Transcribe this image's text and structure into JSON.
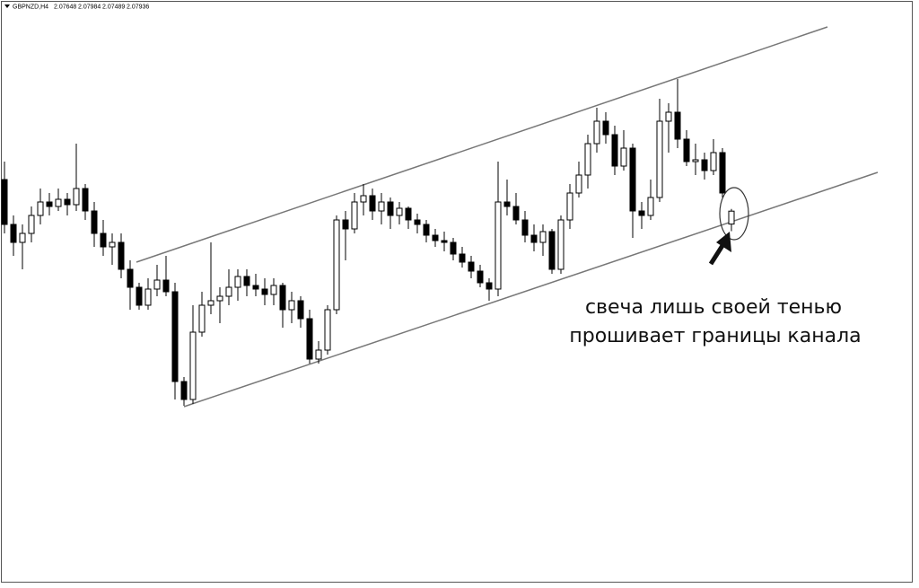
{
  "chart_data": {
    "type": "candlestick",
    "symbol": "GBPNZD,H4",
    "annotation": [
      "свеча лишь своей тенью",
      "прошивает границы канала"
    ],
    "ylim": [
      1.9954,
      2.1264
    ],
    "colors": {
      "up": "#ffffff",
      "down": "#000000",
      "outline": "#000000"
    },
    "open": [
      2.0864,
      2.0764,
      2.0724,
      2.0744,
      2.0784,
      2.0814,
      2.0804,
      2.082,
      2.0808,
      2.0844,
      2.0794,
      2.0744,
      2.0714,
      2.0724,
      2.0664,
      2.0624,
      2.0584,
      2.062,
      2.064,
      2.0614,
      2.0414,
      2.0374,
      2.0524,
      2.0584,
      2.0594,
      2.0604,
      2.0624,
      2.0648,
      2.0628,
      2.062,
      2.0608,
      2.0628,
      2.0574,
      2.0594,
      2.0554,
      2.0464,
      2.0484,
      2.0574,
      2.0774,
      2.0754,
      2.0814,
      2.0828,
      2.0794,
      2.0814,
      2.0784,
      2.08,
      2.0774,
      2.0764,
      2.074,
      2.0728,
      2.0724,
      2.0698,
      2.068,
      2.066,
      2.0634,
      2.062,
      2.0814,
      2.0804,
      2.0774,
      2.074,
      2.0724,
      2.0748,
      2.0664,
      2.0774,
      2.0834,
      2.0874,
      2.0944,
      2.0994,
      2.0964,
      2.0894,
      2.0934,
      2.0794,
      2.0784,
      2.0824,
      2.0994,
      2.1014,
      2.0954,
      2.0904,
      2.0908,
      2.0884,
      2.0924,
      2.07648
    ],
    "high": [
      2.0904,
      2.0784,
      2.0764,
      2.0804,
      2.0844,
      2.0834,
      2.0844,
      2.0834,
      2.0944,
      2.0854,
      2.0814,
      2.0774,
      2.0744,
      2.0744,
      2.0684,
      2.0634,
      2.0644,
      2.0674,
      2.0694,
      2.0634,
      2.0424,
      2.0584,
      2.0614,
      2.0724,
      2.0624,
      2.0664,
      2.0664,
      2.0664,
      2.0654,
      2.0644,
      2.0644,
      2.0634,
      2.0614,
      2.0604,
      2.0574,
      2.0504,
      2.0584,
      2.0784,
      2.0794,
      2.0834,
      2.0854,
      2.0844,
      2.0834,
      2.0824,
      2.0814,
      2.0804,
      2.0788,
      2.0774,
      2.0754,
      2.0748,
      2.0734,
      2.0714,
      2.0694,
      2.0674,
      2.0644,
      2.0904,
      2.0864,
      2.0834,
      2.0794,
      2.0764,
      2.0764,
      2.0754,
      2.0784,
      2.0854,
      2.0904,
      2.0964,
      2.1024,
      2.1014,
      2.0984,
      2.0974,
      2.0944,
      2.0814,
      2.0864,
      2.1044,
      2.1034,
      2.1088,
      2.0974,
      2.0944,
      2.0924,
      2.0954,
      2.0934,
      2.07984
    ],
    "low": [
      2.0744,
      2.0694,
      2.0664,
      2.0724,
      2.0764,
      2.0784,
      2.0794,
      2.0784,
      2.0794,
      2.0774,
      2.0714,
      2.0694,
      2.0674,
      2.0644,
      2.0574,
      2.0574,
      2.0574,
      2.0604,
      2.0604,
      2.0374,
      2.036,
      2.0364,
      2.0514,
      2.0564,
      2.0544,
      2.0584,
      2.0594,
      2.0604,
      2.0604,
      2.0584,
      2.0584,
      2.0534,
      2.0544,
      2.0534,
      2.0454,
      2.0454,
      2.0474,
      2.0564,
      2.0684,
      2.0744,
      2.0784,
      2.0774,
      2.0764,
      2.0754,
      2.0764,
      2.0754,
      2.0744,
      2.0724,
      2.0714,
      2.0704,
      2.0684,
      2.0668,
      2.0644,
      2.0624,
      2.0594,
      2.0604,
      2.0784,
      2.0764,
      2.0724,
      2.0704,
      2.0694,
      2.0654,
      2.0654,
      2.0754,
      2.0824,
      2.0844,
      2.0924,
      2.0944,
      2.0874,
      2.0884,
      2.0734,
      2.0754,
      2.0774,
      2.0814,
      2.0924,
      2.0934,
      2.0894,
      2.0874,
      2.0864,
      2.0874,
      2.0824,
      2.07489
    ],
    "close": [
      2.0764,
      2.0724,
      2.0744,
      2.0784,
      2.0814,
      2.0804,
      2.082,
      2.0808,
      2.0844,
      2.0794,
      2.0744,
      2.0714,
      2.0724,
      2.0664,
      2.0624,
      2.0584,
      2.062,
      2.064,
      2.0614,
      2.0414,
      2.0374,
      2.0524,
      2.0584,
      2.0594,
      2.0604,
      2.0624,
      2.0648,
      2.0628,
      2.062,
      2.0608,
      2.0628,
      2.0574,
      2.0594,
      2.0554,
      2.0464,
      2.0484,
      2.0574,
      2.0774,
      2.0754,
      2.0814,
      2.0828,
      2.0794,
      2.0814,
      2.0784,
      2.08,
      2.0774,
      2.0764,
      2.074,
      2.0728,
      2.0724,
      2.0698,
      2.068,
      2.066,
      2.0634,
      2.062,
      2.0814,
      2.0804,
      2.0774,
      2.074,
      2.0724,
      2.0748,
      2.0664,
      2.0774,
      2.0834,
      2.0874,
      2.0944,
      2.0994,
      2.0964,
      2.0894,
      2.0934,
      2.0794,
      2.0784,
      2.0824,
      2.0994,
      2.1014,
      2.0954,
      2.0904,
      2.0908,
      2.0884,
      2.0924,
      2.0834,
      2.07936
    ]
  }
}
